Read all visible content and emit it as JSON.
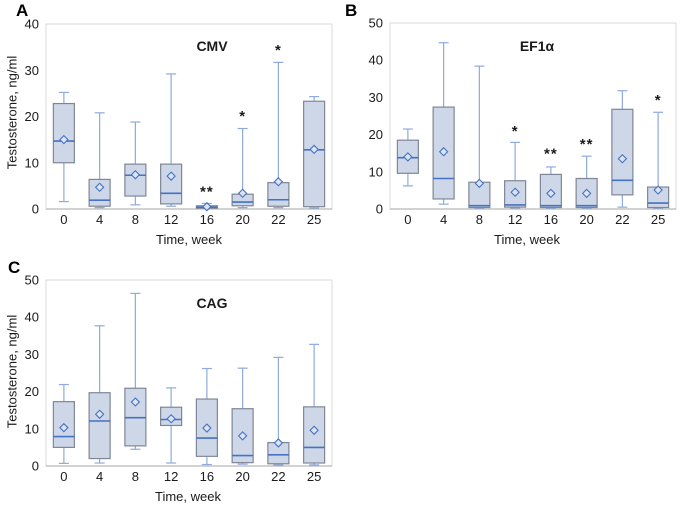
{
  "colors": {
    "box_fill": "#cdd7e8",
    "box_border": "#7f8795",
    "whisker": "#8faadc",
    "median": "#4472c4",
    "mean_fill": "#dce4f1",
    "plot_border": "#d9d9d9",
    "axis_line": "#a6a6a6",
    "text": "#1a1a1a"
  },
  "chart_data": [
    {
      "type": "box",
      "panel_label": "A",
      "title": "CMV",
      "xlabel": "Time, week",
      "ylabel": "Testosterone, ng/ml",
      "ylim": [
        0,
        40
      ],
      "yticks": [
        0,
        10,
        20,
        30,
        40
      ],
      "categories": [
        "0",
        "4",
        "8",
        "12",
        "16",
        "20",
        "22",
        "25"
      ],
      "boxes": [
        {
          "low": 1.6,
          "q1": 10.0,
          "median": 14.7,
          "q3": 22.8,
          "high": 25.2,
          "mean": 15.0,
          "sig": "",
          "sig_y": 0
        },
        {
          "low": 0.3,
          "q1": 0.6,
          "median": 1.9,
          "q3": 6.4,
          "high": 20.8,
          "mean": 4.7,
          "sig": "",
          "sig_y": 0
        },
        {
          "low": 0.9,
          "q1": 2.8,
          "median": 7.3,
          "q3": 9.7,
          "high": 18.8,
          "mean": 7.4,
          "sig": "",
          "sig_y": 0
        },
        {
          "low": 0.6,
          "q1": 1.1,
          "median": 3.4,
          "q3": 9.7,
          "high": 29.2,
          "mean": 7.1,
          "sig": "",
          "sig_y": 0
        },
        {
          "low": 0.1,
          "q1": 0.2,
          "median": 0.4,
          "q3": 0.7,
          "high": 1.2,
          "mean": 0.5,
          "sig": "**",
          "sig_y": 4.2
        },
        {
          "low": 0.3,
          "q1": 0.7,
          "median": 1.5,
          "q3": 3.2,
          "high": 17.4,
          "mean": 3.4,
          "sig": "*",
          "sig_y": 20.5
        },
        {
          "low": 0.3,
          "q1": 0.6,
          "median": 2.0,
          "q3": 5.7,
          "high": 31.7,
          "mean": 5.9,
          "sig": "*",
          "sig_y": 34.8
        },
        {
          "low": 0.2,
          "q1": 0.5,
          "median": 12.8,
          "q3": 23.3,
          "high": 24.3,
          "mean": 12.9,
          "sig": "",
          "sig_y": 0
        }
      ]
    },
    {
      "type": "box",
      "panel_label": "B",
      "title": "EF1α",
      "xlabel": "Time, week",
      "ylabel": "",
      "ylim": [
        0,
        50
      ],
      "yticks": [
        0,
        10,
        20,
        30,
        40,
        50
      ],
      "categories": [
        "0",
        "4",
        "8",
        "12",
        "16",
        "20",
        "22",
        "25"
      ],
      "boxes": [
        {
          "low": 6.2,
          "q1": 9.6,
          "median": 13.8,
          "q3": 18.5,
          "high": 21.5,
          "mean": 14.0,
          "sig": "",
          "sig_y": 0
        },
        {
          "low": 1.3,
          "q1": 2.7,
          "median": 8.2,
          "q3": 27.4,
          "high": 44.7,
          "mean": 15.4,
          "sig": "",
          "sig_y": 0
        },
        {
          "low": 0.2,
          "q1": 0.4,
          "median": 0.9,
          "q3": 7.2,
          "high": 38.4,
          "mean": 6.9,
          "sig": "",
          "sig_y": 0
        },
        {
          "low": 0.3,
          "q1": 0.5,
          "median": 1.1,
          "q3": 7.6,
          "high": 17.9,
          "mean": 4.5,
          "sig": "*",
          "sig_y": 21.5
        },
        {
          "low": 0.2,
          "q1": 0.4,
          "median": 0.9,
          "q3": 9.3,
          "high": 11.3,
          "mean": 4.2,
          "sig": "**",
          "sig_y": 15.5
        },
        {
          "low": 0.2,
          "q1": 0.4,
          "median": 0.9,
          "q3": 8.2,
          "high": 14.2,
          "mean": 4.2,
          "sig": "**",
          "sig_y": 18.0
        },
        {
          "low": 0.5,
          "q1": 3.8,
          "median": 7.7,
          "q3": 26.8,
          "high": 31.8,
          "mean": 13.5,
          "sig": "",
          "sig_y": 0
        },
        {
          "low": 0.2,
          "q1": 0.4,
          "median": 1.6,
          "q3": 5.9,
          "high": 26.0,
          "mean": 5.1,
          "sig": "*",
          "sig_y": 29.8
        }
      ]
    },
    {
      "type": "box",
      "panel_label": "C",
      "title": "CAG",
      "xlabel": "Time, week",
      "ylabel": "Testosterone, ng/ml",
      "ylim": [
        0,
        50
      ],
      "yticks": [
        0,
        10,
        20,
        30,
        40,
        50
      ],
      "categories": [
        "0",
        "4",
        "8",
        "12",
        "16",
        "20",
        "22",
        "25"
      ],
      "boxes": [
        {
          "low": 0.7,
          "q1": 5.0,
          "median": 7.9,
          "q3": 17.3,
          "high": 21.9,
          "mean": 10.3,
          "sig": "",
          "sig_y": 0
        },
        {
          "low": 0.8,
          "q1": 2.0,
          "median": 12.1,
          "q3": 19.7,
          "high": 37.7,
          "mean": 13.9,
          "sig": "",
          "sig_y": 0
        },
        {
          "low": 4.5,
          "q1": 5.4,
          "median": 13.0,
          "q3": 20.9,
          "high": 46.4,
          "mean": 17.2,
          "sig": "",
          "sig_y": 0
        },
        {
          "low": 0.8,
          "q1": 10.9,
          "median": 12.5,
          "q3": 15.8,
          "high": 21.0,
          "mean": 12.7,
          "sig": "",
          "sig_y": 0
        },
        {
          "low": 0.4,
          "q1": 2.6,
          "median": 7.5,
          "q3": 18.0,
          "high": 26.2,
          "mean": 10.2,
          "sig": "",
          "sig_y": 0
        },
        {
          "low": 0.5,
          "q1": 0.9,
          "median": 2.8,
          "q3": 15.4,
          "high": 26.3,
          "mean": 8.1,
          "sig": "",
          "sig_y": 0
        },
        {
          "low": 0.3,
          "q1": 0.6,
          "median": 3.0,
          "q3": 6.3,
          "high": 29.2,
          "mean": 6.2,
          "sig": "",
          "sig_y": 0
        },
        {
          "low": 0.3,
          "q1": 0.8,
          "median": 5.0,
          "q3": 15.9,
          "high": 32.7,
          "mean": 9.6,
          "sig": "",
          "sig_y": 0
        }
      ]
    }
  ]
}
